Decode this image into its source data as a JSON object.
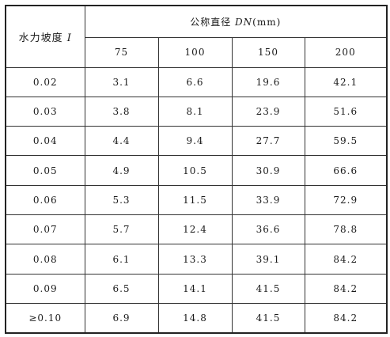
{
  "table": {
    "row_header": {
      "text": "水力坡度 ",
      "symbol": "I"
    },
    "col_group_header": {
      "text": "公称直径 ",
      "symbol": "DN",
      "unit": "(mm)"
    },
    "columns": [
      "75",
      "100",
      "150",
      "200"
    ],
    "rows": [
      {
        "label": "0.02",
        "values": [
          "3.1",
          "6.6",
          "19.6",
          "42.1"
        ]
      },
      {
        "label": "0.03",
        "values": [
          "3.8",
          "8.1",
          "23.9",
          "51.6"
        ]
      },
      {
        "label": "0.04",
        "values": [
          "4.4",
          "9.4",
          "27.7",
          "59.5"
        ]
      },
      {
        "label": "0.05",
        "values": [
          "4.9",
          "10.5",
          "30.9",
          "66.6"
        ]
      },
      {
        "label": "0.06",
        "values": [
          "5.3",
          "11.5",
          "33.9",
          "72.9"
        ]
      },
      {
        "label": "0.07",
        "values": [
          "5.7",
          "12.4",
          "36.6",
          "78.8"
        ]
      },
      {
        "label": "0.08",
        "values": [
          "6.1",
          "13.3",
          "39.1",
          "84.2"
        ]
      },
      {
        "label": "0.09",
        "values": [
          "6.5",
          "14.1",
          "41.5",
          "84.2"
        ]
      },
      {
        "label": "≥0.10",
        "values": [
          "6.9",
          "14.8",
          "41.5",
          "84.2"
        ]
      }
    ]
  }
}
